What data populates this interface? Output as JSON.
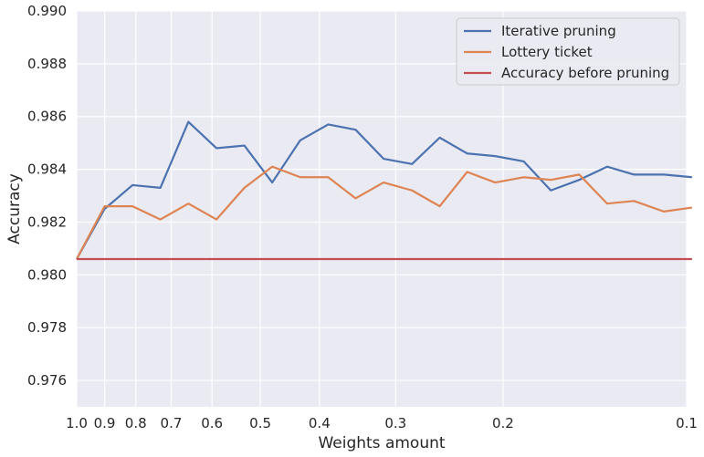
{
  "chart_data": {
    "type": "line",
    "title": "",
    "xlabel": "Weights amount",
    "ylabel": "Accuracy",
    "x_scale": "log",
    "x_reversed": true,
    "xlim": [
      1.0,
      0.1
    ],
    "ylim": [
      0.975,
      0.99
    ],
    "grid": true,
    "legend_position": "top-right",
    "x_ticks": [
      {
        "value": 1.0,
        "label": "1.0"
      },
      {
        "value": 0.9,
        "label": "0.9"
      },
      {
        "value": 0.8,
        "label": "0.8"
      },
      {
        "value": 0.7,
        "label": "0.7"
      },
      {
        "value": 0.6,
        "label": "0.6"
      },
      {
        "value": 0.5,
        "label": "0.5"
      },
      {
        "value": 0.4,
        "label": "0.4"
      },
      {
        "value": 0.3,
        "label": "0.3"
      },
      {
        "value": 0.2,
        "label": "0.2"
      },
      {
        "value": 0.1,
        "label": "0.1"
      }
    ],
    "y_ticks": [
      {
        "value": 0.976,
        "label": "0.976"
      },
      {
        "value": 0.978,
        "label": "0.978"
      },
      {
        "value": 0.98,
        "label": "0.980"
      },
      {
        "value": 0.982,
        "label": "0.982"
      },
      {
        "value": 0.984,
        "label": "0.984"
      },
      {
        "value": 0.986,
        "label": "0.986"
      },
      {
        "value": 0.988,
        "label": "0.988"
      },
      {
        "value": 0.99,
        "label": "0.990"
      }
    ],
    "x": [
      1.0,
      0.9,
      0.81,
      0.729,
      0.656,
      0.59,
      0.531,
      0.478,
      0.43,
      0.387,
      0.349,
      0.314,
      0.282,
      0.254,
      0.229,
      0.206,
      0.185,
      0.167,
      0.15,
      0.135,
      0.122,
      0.109,
      0.098
    ],
    "series": [
      {
        "name": "Iterative pruning",
        "color": "#4c72b0",
        "values": [
          0.9806,
          0.9825,
          0.9834,
          0.9833,
          0.9858,
          0.9848,
          0.9849,
          0.9835,
          0.9851,
          0.9857,
          0.9855,
          0.9844,
          0.9842,
          0.9852,
          0.9846,
          0.9845,
          0.9843,
          0.9832,
          0.9836,
          0.9841,
          0.9838,
          0.9838,
          0.9837
        ]
      },
      {
        "name": "Lottery ticket",
        "color": "#dd8452",
        "values": [
          0.9806,
          0.9826,
          0.9826,
          0.9821,
          0.9827,
          0.9821,
          0.9833,
          0.9841,
          0.9837,
          0.9837,
          0.9829,
          0.9835,
          0.9832,
          0.9826,
          0.9839,
          0.9835,
          0.9837,
          0.9836,
          0.9838,
          0.9827,
          0.9828,
          0.9824,
          0.98255
        ]
      },
      {
        "name": "Accuracy before pruning",
        "color": "#c44e52",
        "values": [
          0.9806,
          0.9806,
          0.9806,
          0.9806,
          0.9806,
          0.9806,
          0.9806,
          0.9806,
          0.9806,
          0.9806,
          0.9806,
          0.9806,
          0.9806,
          0.9806,
          0.9806,
          0.9806,
          0.9806,
          0.9806,
          0.9806,
          0.9806,
          0.9806,
          0.9806,
          0.9806
        ]
      }
    ]
  }
}
